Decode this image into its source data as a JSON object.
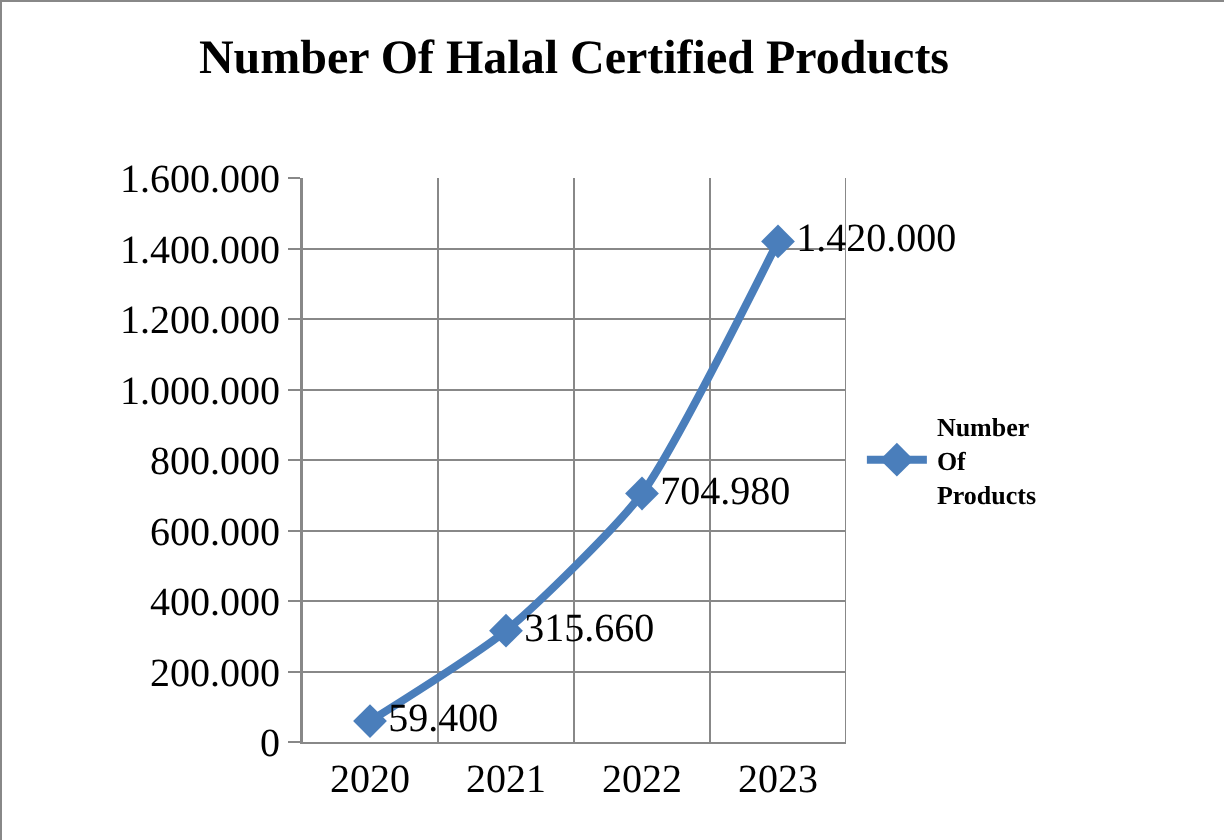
{
  "chart_data": {
    "type": "line",
    "title": "Number Of Halal Certified Products",
    "categories": [
      "2020",
      "2021",
      "2022",
      "2023"
    ],
    "series": [
      {
        "name": "Number Of Products",
        "color": "#4a7ebb",
        "values": [
          59400,
          315660,
          704980,
          1420000
        ],
        "value_labels": [
          "59.400",
          "315.660",
          "704.980",
          "1.420.000"
        ]
      }
    ],
    "ylim": [
      0,
      1600000
    ],
    "yticks": [
      {
        "value": 0,
        "label": "0"
      },
      {
        "value": 200000,
        "label": "200.000"
      },
      {
        "value": 400000,
        "label": "400.000"
      },
      {
        "value": 600000,
        "label": "600.000"
      },
      {
        "value": 800000,
        "label": "800.000"
      },
      {
        "value": 1000000,
        "label": "1.000.000"
      },
      {
        "value": 1200000,
        "label": "1.200.000"
      },
      {
        "value": 1400000,
        "label": "1.400.000"
      },
      {
        "value": 1600000,
        "label": "1.600.000"
      }
    ],
    "grid": true,
    "legend": "right",
    "marker": "diamond",
    "line_style": "solid"
  }
}
